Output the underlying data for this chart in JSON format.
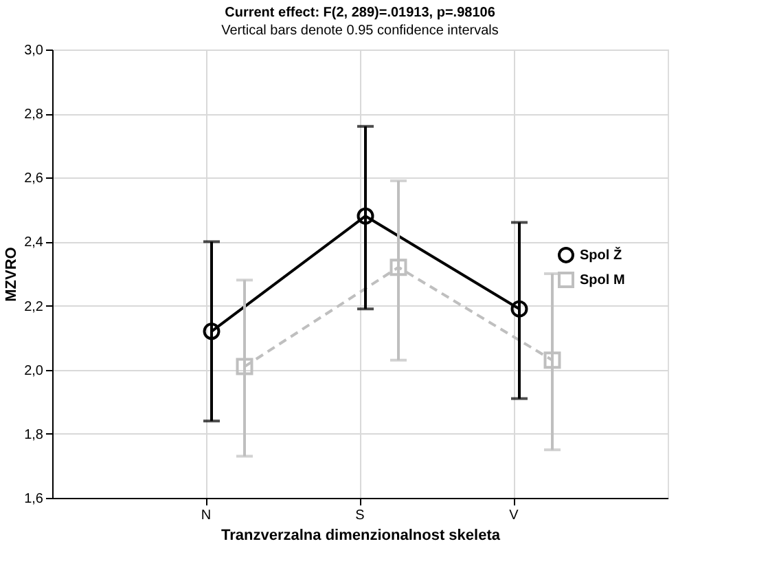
{
  "chart_data": {
    "type": "line",
    "title": "Current effect: F(2, 289)=.01913, p=.98106",
    "subtitle": "Vertical bars denote 0.95 confidence intervals",
    "xlabel": "Tranzverzalna dimenzionalnost skeleta",
    "ylabel": "MZVRO",
    "categories": [
      "N",
      "S",
      "V"
    ],
    "series": [
      {
        "name": "Spol Ž",
        "color": "#000000",
        "marker": "circle",
        "line_style": "solid",
        "values": [
          2.12,
          2.48,
          2.19
        ],
        "errors": [
          [
            1.84,
            2.4
          ],
          [
            2.19,
            2.76
          ],
          [
            1.91,
            2.46
          ]
        ]
      },
      {
        "name": "Spol M",
        "color": "#bfbfbf",
        "marker": "square",
        "line_style": "dashed",
        "values": [
          2.01,
          2.32,
          2.03
        ],
        "errors": [
          [
            1.73,
            2.28
          ],
          [
            2.03,
            2.59
          ],
          [
            1.75,
            2.3
          ]
        ]
      }
    ],
    "ylim": [
      1.6,
      3.0
    ],
    "yticks": [
      {
        "value": 1.6,
        "label": "1,6"
      },
      {
        "value": 1.8,
        "label": "1,8"
      },
      {
        "value": 2.0,
        "label": "2,0"
      },
      {
        "value": 2.2,
        "label": "2,2"
      },
      {
        "value": 2.4,
        "label": "2,4"
      },
      {
        "value": 2.6,
        "label": "2,6"
      },
      {
        "value": 2.8,
        "label": "2,8"
      },
      {
        "value": 3.0,
        "label": "3,0"
      }
    ],
    "grid": true,
    "legend": "right"
  }
}
